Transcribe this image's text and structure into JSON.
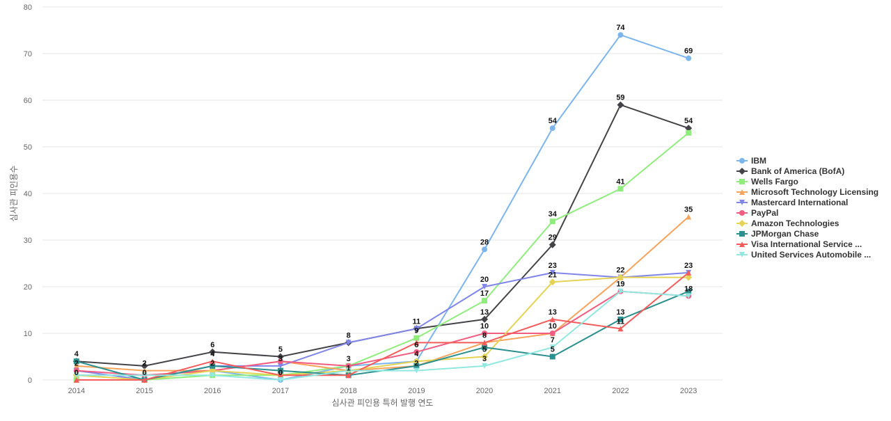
{
  "chart_data": {
    "type": "line",
    "title": "",
    "xlabel": "심사관 피인용 특허 발행 연도",
    "ylabel": "심사관 피인용수",
    "x": [
      "2014",
      "2015",
      "2016",
      "2017",
      "2018",
      "2019",
      "2020",
      "2021",
      "2022",
      "2023"
    ],
    "ylim": [
      0,
      80
    ],
    "yticks": [
      0,
      10,
      20,
      30,
      40,
      50,
      60,
      70,
      80
    ],
    "grid": true,
    "legend_position": "right",
    "series": [
      {
        "name": "IBM",
        "color": "#7cb5ec",
        "marker": "circle",
        "values": [
          1,
          1,
          2,
          0,
          3,
          4,
          28,
          54,
          74,
          69
        ]
      },
      {
        "name": "Bank of America (BofA)",
        "color": "#434348",
        "marker": "diamond",
        "values": [
          4,
          3,
          6,
          5,
          8,
          11,
          13,
          29,
          59,
          54
        ]
      },
      {
        "name": "Wells Fargo",
        "color": "#90ed7d",
        "marker": "square",
        "values": [
          0,
          0,
          1,
          1,
          3,
          9,
          17,
          34,
          41,
          53
        ]
      },
      {
        "name": "Microsoft Technology Licensing",
        "color": "#f7a35c",
        "marker": "triangle",
        "values": [
          3,
          2,
          2,
          4,
          2,
          3,
          8,
          10,
          22,
          35
        ]
      },
      {
        "name": "Mastercard International",
        "color": "#8085e9",
        "marker": "triangle-down",
        "values": [
          2,
          0,
          3,
          3,
          8,
          11,
          20,
          23,
          22,
          23
        ]
      },
      {
        "name": "PayPal",
        "color": "#f15c80",
        "marker": "circle",
        "values": [
          2,
          1,
          2,
          4,
          3,
          6,
          10,
          10,
          19,
          18
        ]
      },
      {
        "name": "Amazon Technologies",
        "color": "#e4d354",
        "marker": "diamond",
        "values": [
          1,
          0,
          2,
          1,
          2,
          4,
          5,
          21,
          22,
          22
        ]
      },
      {
        "name": "JPMorgan Chase",
        "color": "#2b908f",
        "marker": "square",
        "values": [
          4,
          0,
          3,
          2,
          1,
          3,
          7,
          5,
          13,
          19
        ]
      },
      {
        "name": "Visa International Service ...",
        "color": "#f45b5b",
        "marker": "triangle",
        "values": [
          0,
          0,
          4,
          1,
          1,
          8,
          8,
          13,
          11,
          23
        ]
      },
      {
        "name": "United Services Automobile ...",
        "color": "#91e8e1",
        "marker": "triangle-down",
        "values": [
          1,
          1,
          1,
          0,
          2,
          2,
          3,
          7,
          19,
          18
        ]
      }
    ],
    "data_labels": [
      {
        "x": "2014",
        "value": 4
      },
      {
        "x": "2014",
        "value": 2
      },
      {
        "x": "2014",
        "value": 0
      },
      {
        "x": "2015",
        "value": 2
      },
      {
        "x": "2015",
        "value": 0
      },
      {
        "x": "2016",
        "value": 6
      },
      {
        "x": "2016",
        "value": 4
      },
      {
        "x": "2016",
        "value": 2
      },
      {
        "x": "2017",
        "value": 5
      },
      {
        "x": "2017",
        "value": 3
      },
      {
        "x": "2017",
        "value": 0
      },
      {
        "x": "2018",
        "value": 8
      },
      {
        "x": "2018",
        "value": 3
      },
      {
        "x": "2018",
        "value": 1
      },
      {
        "x": "2019",
        "value": 11
      },
      {
        "x": "2019",
        "value": 9
      },
      {
        "x": "2019",
        "value": 6
      },
      {
        "x": "2019",
        "value": 4
      },
      {
        "x": "2019",
        "value": 2
      },
      {
        "x": "2020",
        "value": 28
      },
      {
        "x": "2020",
        "value": 20
      },
      {
        "x": "2020",
        "value": 17
      },
      {
        "x": "2020",
        "value": 13
      },
      {
        "x": "2020",
        "value": 10
      },
      {
        "x": "2020",
        "value": 8
      },
      {
        "x": "2020",
        "value": 5
      },
      {
        "x": "2020",
        "value": 3
      },
      {
        "x": "2021",
        "value": 54
      },
      {
        "x": "2021",
        "value": 34
      },
      {
        "x": "2021",
        "value": 29
      },
      {
        "x": "2021",
        "value": 23
      },
      {
        "x": "2021",
        "value": 21
      },
      {
        "x": "2021",
        "value": 13
      },
      {
        "x": "2021",
        "value": 10
      },
      {
        "x": "2021",
        "value": 7
      },
      {
        "x": "2021",
        "value": 5
      },
      {
        "x": "2022",
        "value": 74
      },
      {
        "x": "2022",
        "value": 59
      },
      {
        "x": "2022",
        "value": 41
      },
      {
        "x": "2022",
        "value": 22
      },
      {
        "x": "2022",
        "value": 19
      },
      {
        "x": "2022",
        "value": 13
      },
      {
        "x": "2022",
        "value": 11
      },
      {
        "x": "2023",
        "value": 69
      },
      {
        "x": "2023",
        "value": 54
      },
      {
        "x": "2023",
        "value": 35
      },
      {
        "x": "2023",
        "value": 23
      },
      {
        "x": "2023",
        "value": 18
      }
    ]
  }
}
